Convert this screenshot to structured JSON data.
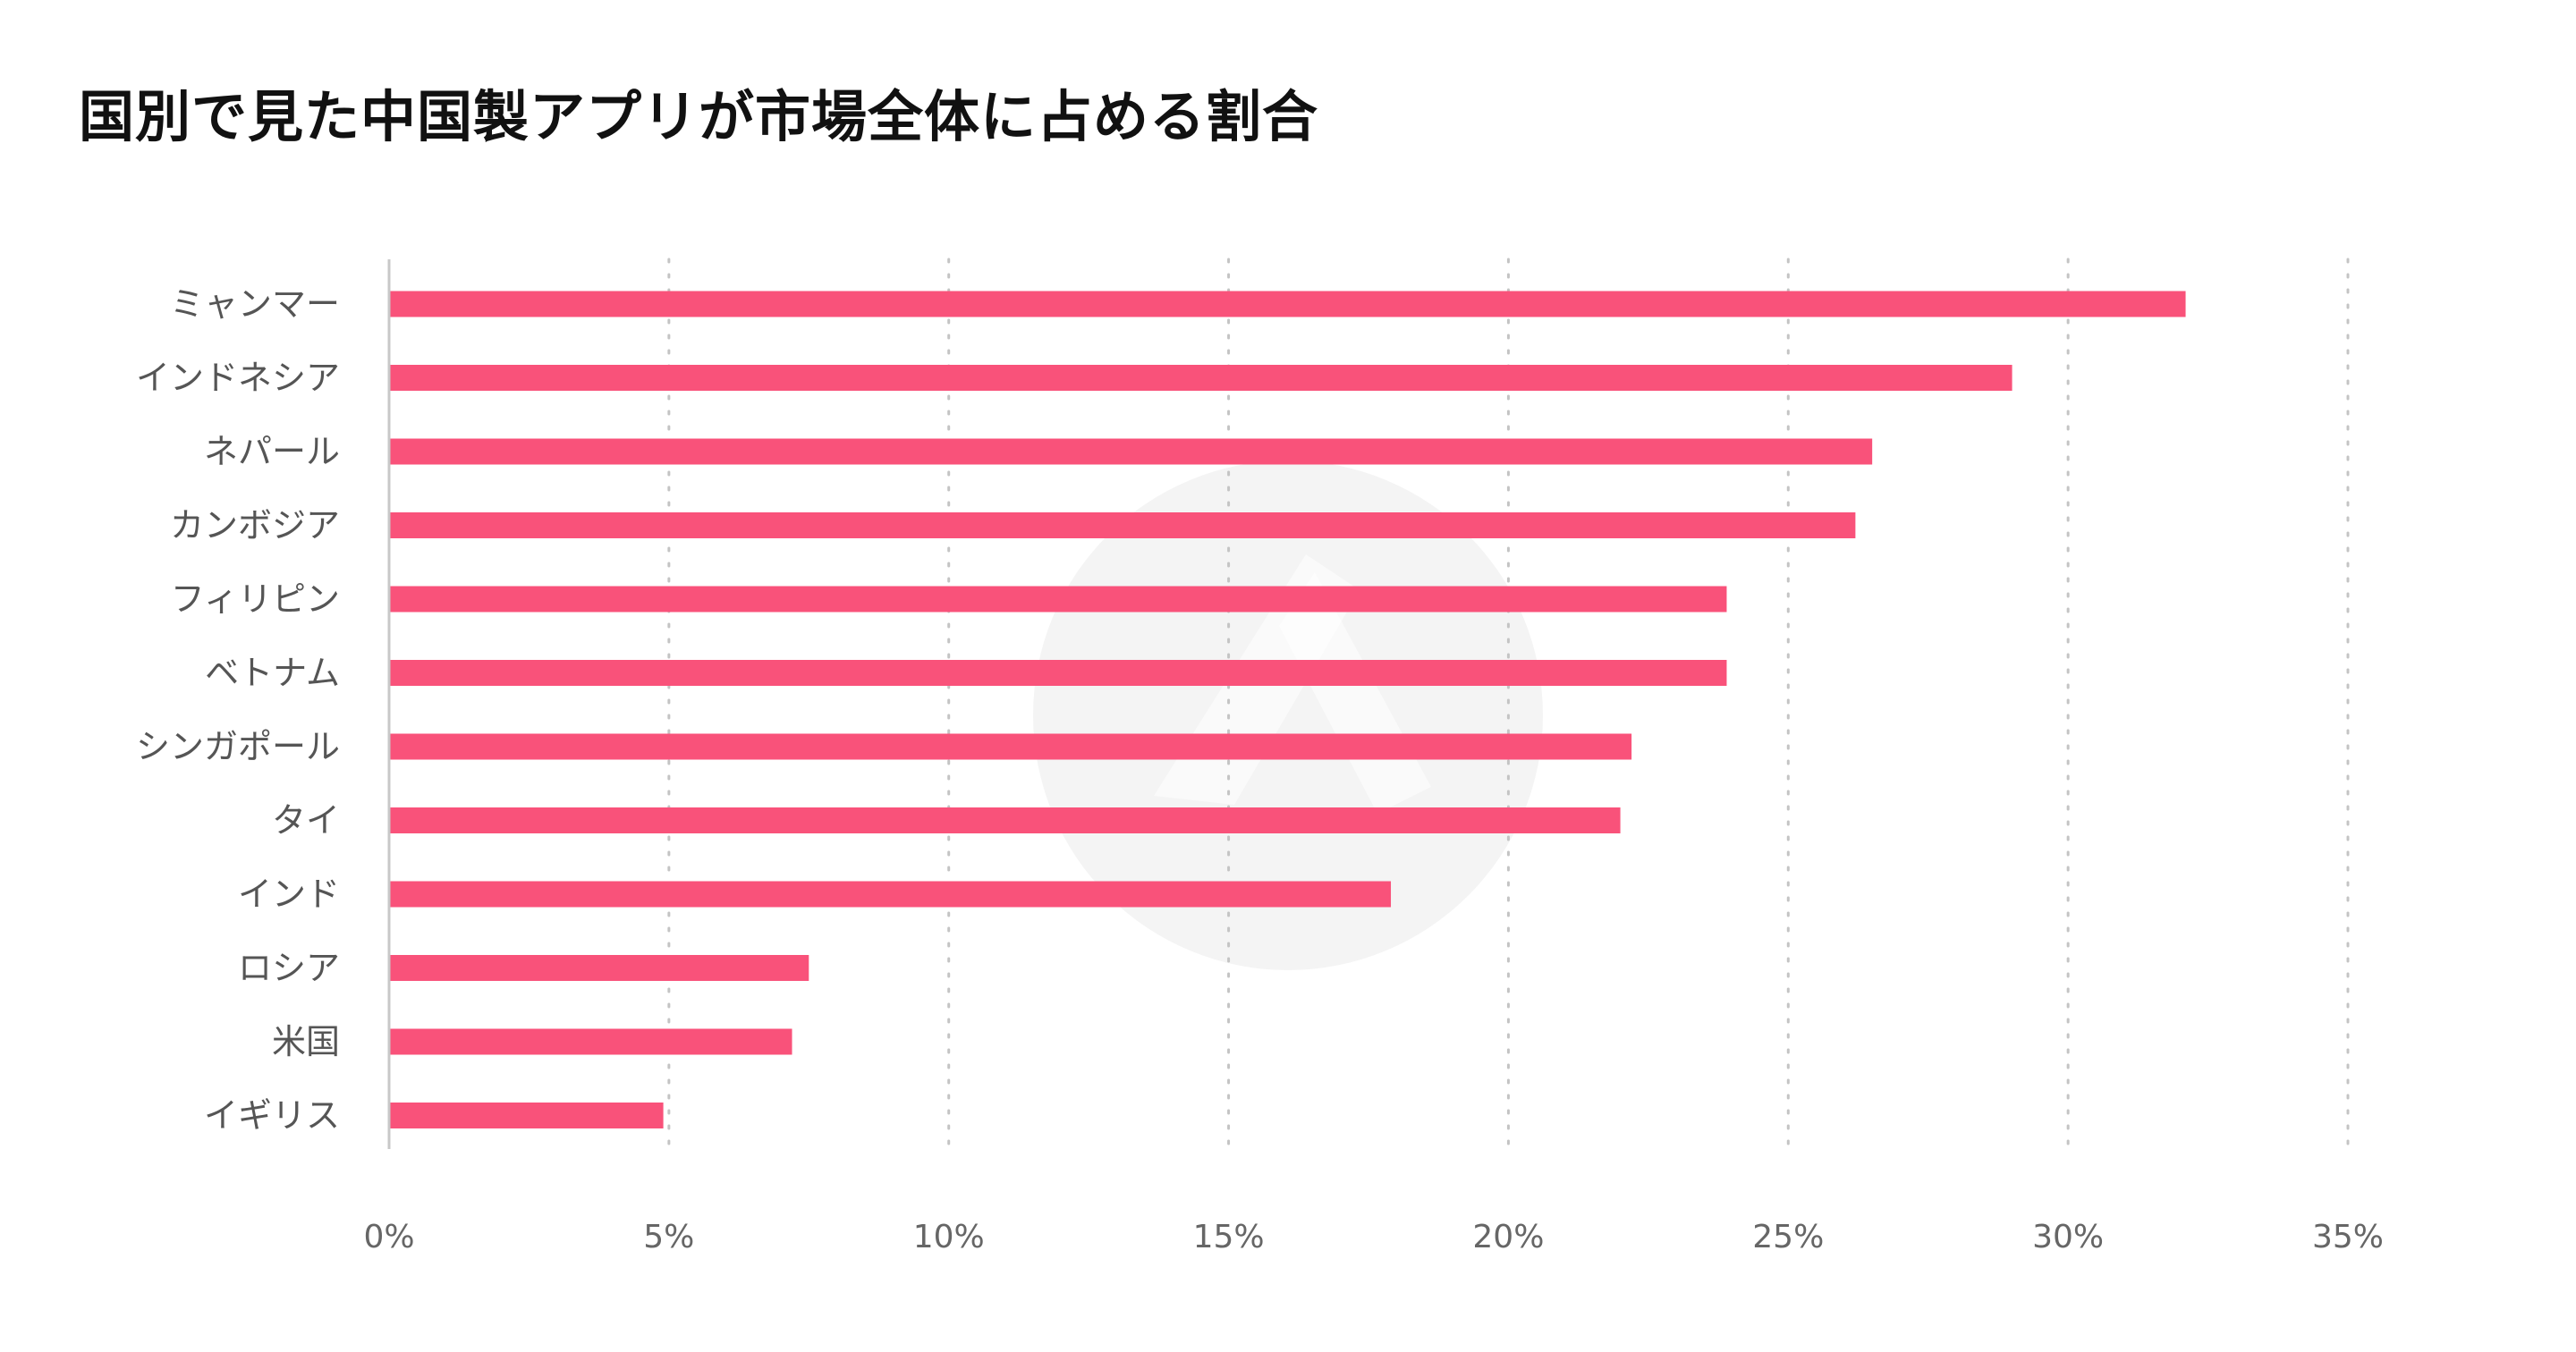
{
  "title": "国別で見た中国製アプリが市場全体に占める割合",
  "colors": {
    "bar": "#f9527a",
    "axis": "#c8c8c8",
    "grid": "#c4c4c4",
    "watermark": "#f4f4f4"
  },
  "chart_data": {
    "type": "bar",
    "orientation": "horizontal",
    "title": "国別で見た中国製アプリが市場全体に占める割合",
    "xlabel": "",
    "ylabel": "",
    "xlim": [
      0,
      35
    ],
    "x_ticks": [
      "0%",
      "5%",
      "10%",
      "15%",
      "20%",
      "25%",
      "30%",
      "35%"
    ],
    "grid": "vertical dotted",
    "legend": "none",
    "categories": [
      "ミャンマー",
      "インドネシア",
      "ネパール",
      "カンボジア",
      "フィリピン",
      "ベトナム",
      "シンガポール",
      "タイ",
      "インド",
      "ロシア",
      "米国",
      "イギリス"
    ],
    "values": [
      32.1,
      29.0,
      26.5,
      26.2,
      23.9,
      23.9,
      22.2,
      22.0,
      17.9,
      7.5,
      7.2,
      4.9
    ],
    "unit": "%"
  }
}
